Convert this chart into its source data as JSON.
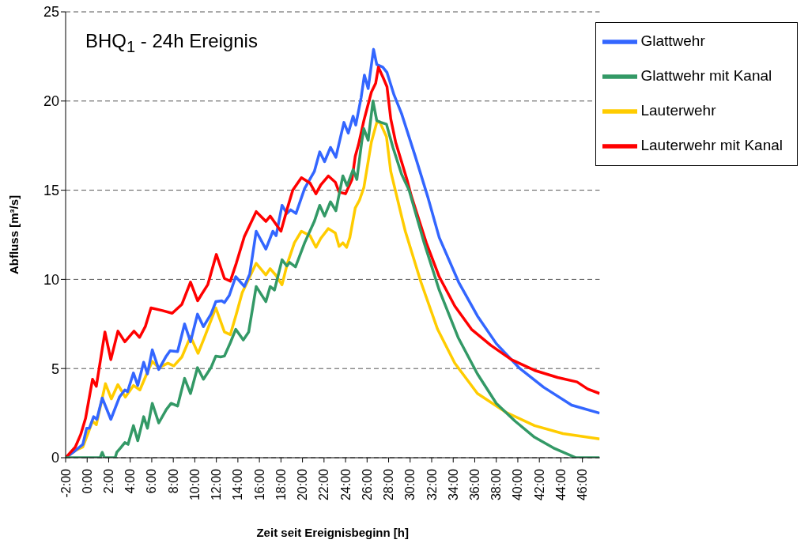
{
  "chart_data": {
    "type": "line",
    "title": "BHQ$_{1}$ - 24h Ereignis",
    "xlabel": "Zeit seit Ereignisbeginn [h]",
    "ylabel": "Abfluss [m³/s]",
    "xlim": [
      -2,
      47.6
    ],
    "ylim": [
      0,
      25
    ],
    "xticks": [
      {
        "value": -2,
        "label": "-2:00"
      },
      {
        "value": 0,
        "label": "0:00"
      },
      {
        "value": 2,
        "label": "2:00"
      },
      {
        "value": 4,
        "label": "4:00"
      },
      {
        "value": 6,
        "label": "6:00"
      },
      {
        "value": 8,
        "label": "8:00"
      },
      {
        "value": 10,
        "label": "10:00"
      },
      {
        "value": 12,
        "label": "12:00"
      },
      {
        "value": 14,
        "label": "14:00"
      },
      {
        "value": 16,
        "label": "16:00"
      },
      {
        "value": 18,
        "label": "18:00"
      },
      {
        "value": 20,
        "label": "20:00"
      },
      {
        "value": 22,
        "label": "22:00"
      },
      {
        "value": 24,
        "label": "24:00"
      },
      {
        "value": 26,
        "label": "26:00"
      },
      {
        "value": 28,
        "label": "28:00"
      },
      {
        "value": 30,
        "label": "30:00"
      },
      {
        "value": 32,
        "label": "32:00"
      },
      {
        "value": 34,
        "label": "34:00"
      },
      {
        "value": 36,
        "label": "36:00"
      },
      {
        "value": 38,
        "label": "38:00"
      },
      {
        "value": 40,
        "label": "40:00"
      },
      {
        "value": 42,
        "label": "42:00"
      },
      {
        "value": 44,
        "label": "44:00"
      },
      {
        "value": 46,
        "label": "46:00"
      }
    ],
    "yticks": [
      0,
      5,
      10,
      15,
      20,
      25
    ],
    "grid": "y",
    "legend": "top right",
    "marker": "none",
    "line_style": "solid",
    "series": [
      {
        "name": "Lauterwehr",
        "color": "#ffcc00",
        "x": [
          -2,
          -1.1,
          -0.4,
          0.1,
          0.5,
          0.85,
          1.7,
          2.25,
          2.85,
          3.55,
          4.3,
          4.9,
          5.6,
          6.05,
          6.65,
          7.5,
          8.05,
          8.8,
          9.6,
          10.3,
          10.9,
          11.95,
          12.75,
          13.3,
          13.85,
          14.4,
          15.7,
          16.6,
          17,
          17.5,
          18.1,
          18.6,
          19.25,
          19.9,
          20.7,
          21.25,
          21.7,
          22.4,
          23.05,
          23.4,
          23.75,
          24.1,
          24.4,
          24.9,
          25.3,
          25.7,
          26.4,
          26.9,
          27.2,
          27.8,
          28.2,
          29.2,
          29.55,
          31,
          32.55,
          34.15,
          36.25,
          38.9,
          41.55,
          44.2,
          47.6
        ],
        "values": [
          0,
          0.4,
          0.6,
          1.4,
          2.05,
          1.85,
          4.15,
          3.3,
          4.1,
          3.4,
          4.05,
          3.8,
          4.8,
          5.4,
          5.05,
          5.3,
          5.15,
          5.65,
          6.8,
          5.85,
          6.75,
          8.4,
          7.05,
          6.9,
          8.05,
          9.25,
          10.9,
          10.25,
          10.6,
          10.25,
          9.7,
          10.9,
          12.05,
          12.7,
          12.45,
          11.8,
          12.3,
          12.85,
          12.6,
          11.85,
          12.05,
          11.8,
          12.35,
          14,
          14.45,
          15.15,
          17.7,
          18.8,
          18.8,
          18,
          16.05,
          13.55,
          12.7,
          9.85,
          7.2,
          5.3,
          3.6,
          2.55,
          1.8,
          1.35,
          1.05
        ]
      },
      {
        "name": "Glattwehr",
        "color": "#3366ff",
        "x": [
          -2,
          -1.1,
          -0.4,
          -0.05,
          0.2,
          0.6,
          0.9,
          1.4,
          2.2,
          3,
          3.5,
          3.75,
          4.3,
          4.7,
          5.25,
          5.6,
          6.05,
          6.65,
          7.35,
          7.7,
          8.4,
          9.05,
          9.6,
          10.25,
          10.8,
          11.5,
          11.95,
          12.5,
          12.75,
          13.2,
          13.8,
          14.6,
          15.1,
          15.7,
          16.6,
          17.25,
          17.55,
          18.1,
          18.55,
          18.9,
          19.4,
          20.2,
          21.1,
          21.6,
          22.05,
          22.6,
          23.1,
          23.85,
          24.25,
          24.7,
          24.95,
          25.45,
          25.75,
          26.1,
          26.6,
          26.9,
          27.45,
          27.85,
          28.5,
          29.2,
          30.45,
          31.65,
          32.7,
          34.5,
          36.25,
          38,
          40.1,
          42.4,
          45,
          47.6
        ],
        "values": [
          0,
          0.4,
          0.75,
          1.65,
          1.65,
          2.3,
          2.15,
          3.35,
          2.15,
          3.4,
          3.8,
          3.7,
          4.75,
          4.05,
          5.35,
          4.7,
          6.05,
          4.95,
          5.7,
          6,
          5.95,
          7.5,
          6.5,
          8.05,
          7.35,
          8.05,
          8.75,
          8.8,
          8.7,
          9.1,
          10.15,
          9.6,
          10.3,
          12.7,
          11.7,
          12.7,
          12.45,
          14.15,
          13.7,
          13.9,
          13.7,
          15.1,
          16.05,
          17.15,
          16.6,
          17.4,
          16.85,
          18.8,
          18.2,
          19.15,
          18.65,
          20.2,
          21.45,
          20.7,
          22.9,
          22.05,
          21.9,
          21.6,
          20.35,
          19.3,
          16.95,
          14.6,
          12.35,
          9.85,
          7.95,
          6.4,
          5.05,
          3.95,
          2.95,
          2.5
        ]
      },
      {
        "name": "Lauterwehr mit Kanal",
        "color": "#ff0000",
        "x": [
          -2,
          -1.1,
          -0.6,
          -0.15,
          0.5,
          0.85,
          1.65,
          2.2,
          2.86,
          3.5,
          4.35,
          4.87,
          5.4,
          5.93,
          7,
          7.9,
          8.8,
          9.6,
          10.26,
          11.2,
          12,
          12.75,
          13.3,
          13.85,
          14.6,
          15.7,
          16.6,
          17,
          18,
          18.6,
          19.1,
          19.9,
          20.7,
          21.25,
          21.7,
          22.4,
          23.05,
          23.4,
          24,
          24.6,
          24.9,
          25.2,
          25.7,
          26.4,
          26.8,
          27.05,
          27.5,
          27.85,
          28.2,
          28.65,
          29.7,
          30.1,
          31.5,
          32.7,
          34.15,
          35.7,
          37.5,
          39.4,
          41.55,
          43.7,
          45.5,
          46.5,
          47.6
        ],
        "values": [
          0,
          0.6,
          1.3,
          2.2,
          4.4,
          4,
          7.05,
          5.5,
          7.1,
          6.5,
          7.1,
          6.75,
          7.35,
          8.4,
          8.25,
          8.1,
          8.6,
          9.85,
          8.8,
          9.7,
          11.4,
          10.05,
          9.9,
          10.9,
          12.4,
          13.8,
          13.25,
          13.55,
          12.7,
          14,
          15,
          15.7,
          15.4,
          14.8,
          15.3,
          15.8,
          15.45,
          14.9,
          14.8,
          15.6,
          16.9,
          17.55,
          18.9,
          20.5,
          21,
          21.9,
          21.3,
          20.8,
          19,
          17.7,
          15.6,
          14.7,
          12.05,
          10.15,
          8.5,
          7.2,
          6.3,
          5.5,
          4.9,
          4.5,
          4.25,
          3.85,
          3.6
        ]
      },
      {
        "name": "Glattwehr mit Kanal",
        "color": "#339966",
        "x": [
          -2,
          1.2,
          1.4,
          1.6,
          2.6,
          2.75,
          3.1,
          3.5,
          3.8,
          4.3,
          4.7,
          5.25,
          5.6,
          6.05,
          6.65,
          7.35,
          7.8,
          8.4,
          9.05,
          9.6,
          10.25,
          10.8,
          11.5,
          11.95,
          12.4,
          12.75,
          13.3,
          13.8,
          14.5,
          15,
          15.7,
          16.6,
          17,
          17.4,
          18.1,
          18.55,
          18.8,
          19.35,
          20.2,
          21.1,
          21.6,
          22.05,
          22.6,
          23.1,
          23.75,
          24.15,
          24.7,
          25.05,
          25.5,
          25.7,
          26.1,
          26.55,
          26.9,
          27.3,
          27.8,
          28.4,
          29.2,
          29.9,
          31.3,
          32.7,
          34.45,
          36.25,
          38,
          39.75,
          41.55,
          43.3,
          45.4,
          47.6
        ],
        "values": [
          0,
          0,
          0.3,
          0,
          0,
          0.3,
          0.55,
          0.85,
          0.75,
          1.8,
          0.95,
          2.3,
          1.65,
          3.05,
          1.95,
          2.7,
          3.05,
          2.9,
          4.45,
          3.6,
          5.05,
          4.4,
          5.05,
          5.7,
          5.65,
          5.7,
          6.45,
          7.2,
          6.6,
          7.05,
          9.6,
          8.75,
          9.6,
          9.4,
          11.1,
          10.75,
          10.95,
          10.7,
          12.05,
          13.25,
          14.15,
          13.55,
          14.35,
          13.85,
          15.8,
          15.25,
          16.15,
          15.6,
          17.7,
          18.45,
          17.8,
          20,
          18.9,
          18.8,
          18.7,
          17.4,
          15.9,
          15,
          12.05,
          9.4,
          6.75,
          4.7,
          3.05,
          2.05,
          1.15,
          0.55,
          0,
          0
        ]
      }
    ]
  }
}
